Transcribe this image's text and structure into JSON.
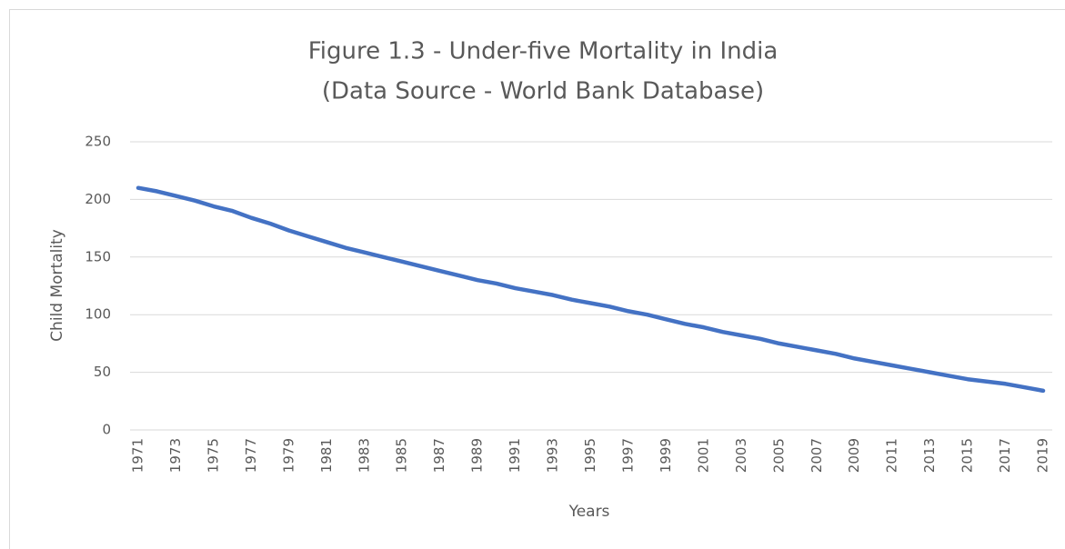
{
  "chart_data": {
    "type": "line",
    "title": "Figure 1.3 - Under-five Mortality in India",
    "subtitle": "(Data Source - World Bank Database)",
    "x_label": "Years",
    "y_label": "Child Mortality",
    "x": [
      1971,
      1972,
      1973,
      1974,
      1975,
      1976,
      1977,
      1978,
      1979,
      1980,
      1981,
      1982,
      1983,
      1984,
      1985,
      1986,
      1987,
      1988,
      1989,
      1990,
      1991,
      1992,
      1993,
      1994,
      1995,
      1996,
      1997,
      1998,
      1999,
      2000,
      2001,
      2002,
      2003,
      2004,
      2005,
      2006,
      2007,
      2008,
      2009,
      2010,
      2011,
      2012,
      2013,
      2014,
      2015,
      2016,
      2017,
      2018,
      2019
    ],
    "series": [
      {
        "name": "Child Mortality",
        "color": "#4472c4",
        "values": [
          210,
          207,
          203,
          199,
          194,
          190,
          184,
          179,
          173,
          168,
          163,
          158,
          154,
          150,
          146,
          142,
          138,
          134,
          130,
          127,
          123,
          120,
          117,
          113,
          110,
          107,
          103,
          100,
          96,
          92,
          89,
          85,
          82,
          79,
          75,
          72,
          69,
          66,
          62,
          59,
          56,
          53,
          50,
          47,
          44,
          42,
          40,
          37,
          34
        ]
      }
    ],
    "xlim": [
      1971,
      2019
    ],
    "xticks": [
      1971,
      1973,
      1975,
      1977,
      1979,
      1981,
      1983,
      1985,
      1987,
      1989,
      1991,
      1993,
      1995,
      1997,
      1999,
      2001,
      2003,
      2005,
      2007,
      2009,
      2011,
      2013,
      2015,
      2017,
      2019
    ],
    "ylim": [
      0,
      250
    ],
    "yticks": [
      0,
      50,
      100,
      150,
      200,
      250
    ],
    "grid": true
  }
}
